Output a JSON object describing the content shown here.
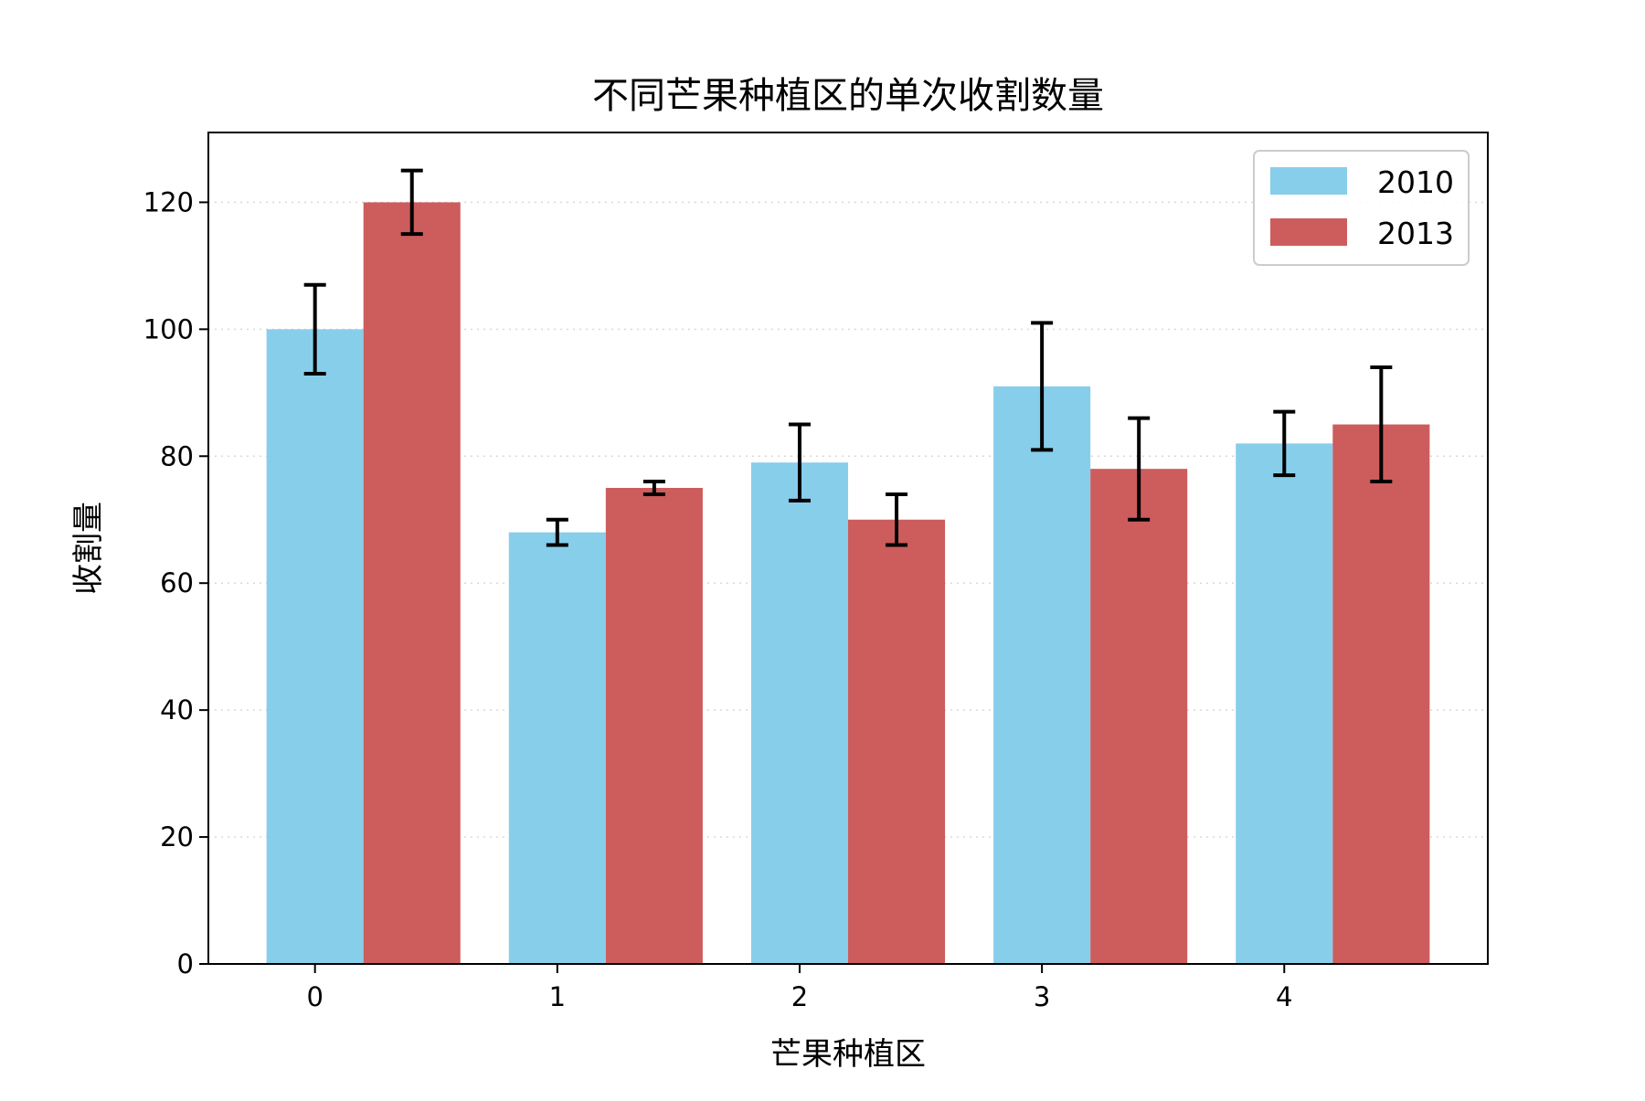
{
  "chart_data": {
    "type": "bar",
    "title": "不同芒果种植区的单次收割数量",
    "xlabel": "芒果种植区",
    "ylabel": "收割量",
    "categories": [
      "0",
      "1",
      "2",
      "3",
      "4"
    ],
    "series": [
      {
        "name": "2010",
        "color": "#87ceeb",
        "values": [
          100,
          68,
          79,
          91,
          82
        ],
        "errors": [
          7,
          2,
          6,
          10,
          5
        ]
      },
      {
        "name": "2013",
        "color": "#cd5c5c",
        "values": [
          120,
          75,
          70,
          78,
          85
        ],
        "errors": [
          5,
          1,
          4,
          8,
          9
        ]
      }
    ],
    "ylim": [
      0,
      131
    ],
    "yticks": [
      0,
      20,
      40,
      60,
      80,
      100,
      120
    ],
    "grid": "y-dotted",
    "legend": "top-right"
  }
}
